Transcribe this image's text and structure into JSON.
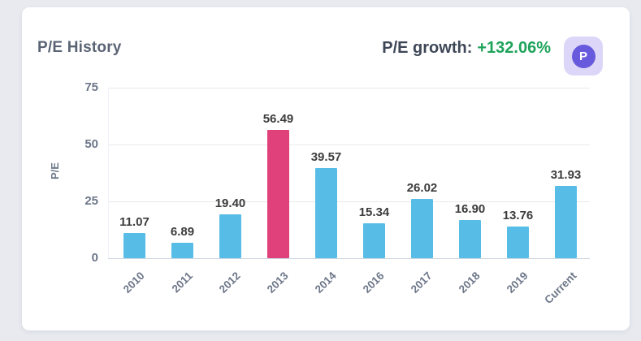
{
  "card": {
    "title": "P/E History",
    "growth_label": "P/E growth:",
    "growth_value": "+132.06%",
    "badge_letter": "P"
  },
  "colors": {
    "page_bg": "#e8eaef",
    "card_bg": "#ffffff",
    "title_text": "#5a6475",
    "growth_label_text": "#3e4757",
    "growth_value_text": "#1ea35a",
    "badge_bg": "#dcd7f8",
    "badge_circle": "#675add",
    "bar": "#58bde6",
    "bar_highlight": "#e0417b",
    "value_label_text": "#3c3c3c",
    "axis_text": "#6d7789",
    "gridline": "#e9e9e9",
    "axis_line": "#ccd6e2"
  },
  "chart_data": {
    "type": "bar",
    "title": "P/E History",
    "categories": [
      "2010",
      "2011",
      "2012",
      "2013",
      "2014",
      "2016",
      "2017",
      "2018",
      "2019",
      "Current"
    ],
    "values": [
      11.07,
      6.89,
      19.4,
      56.49,
      39.57,
      15.34,
      26.02,
      16.9,
      13.76,
      31.93
    ],
    "highlight_index": 3,
    "highlight_category": "2013",
    "xlabel": "",
    "ylabel": "P/E",
    "ylim": [
      0,
      75
    ],
    "yticks": [
      0,
      25,
      50,
      75
    ],
    "grid": true,
    "legend": false,
    "value_label_decimals": 2
  }
}
